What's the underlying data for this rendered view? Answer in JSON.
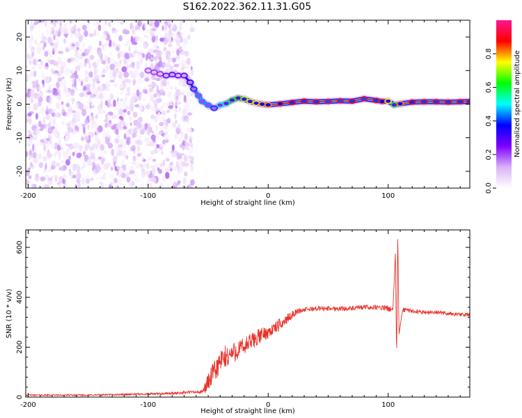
{
  "figure_title": "S162.2022.362.11.31.G05",
  "chart_data": [
    {
      "type": "heatmap",
      "title": "",
      "xlabel": "Height of straight line (km)",
      "ylabel": "Frequency (Hz)",
      "xlim": [
        -202,
        168
      ],
      "ylim": [
        -25,
        25
      ],
      "xticks": [
        -200,
        -100,
        0,
        100
      ],
      "yticks": [
        -20,
        -10,
        0,
        10,
        20
      ],
      "grid": false,
      "colorbar": {
        "label": "Normalized spectral amplitude",
        "range": [
          0,
          1
        ],
        "ticks": [
          0.0,
          0.2,
          0.4,
          0.6,
          0.8
        ],
        "colors": [
          "#ffffff",
          "#d8b2f6",
          "#7f00ff",
          "#0000ff",
          "#00ffff",
          "#00ff00",
          "#ffff00",
          "#ff0000",
          "#ff1493"
        ]
      },
      "noise_region": {
        "x_from": -202,
        "x_to": -63,
        "freq_from": -25,
        "freq_to": 25,
        "amplitude_range": [
          0.02,
          0.18
        ]
      },
      "frequency_trace": {
        "x": [
          -100,
          -95,
          -90,
          -85,
          -80,
          -75,
          -70,
          -65,
          -62,
          -58,
          -55,
          -50,
          -45,
          -40,
          -35,
          -30,
          -25,
          -20,
          -15,
          -10,
          -5,
          0,
          10,
          20,
          30,
          40,
          50,
          60,
          70,
          80,
          90,
          95,
          100,
          105,
          110,
          120,
          130,
          140,
          150,
          160,
          168
        ],
        "freq": [
          10,
          9.5,
          9,
          8.5,
          8.8,
          8.5,
          8.5,
          6.5,
          4.5,
          2.5,
          0.8,
          -0.3,
          -1.2,
          -0.3,
          0.2,
          1.2,
          1.8,
          1.5,
          0.8,
          0.3,
          0,
          -0.2,
          0.1,
          0.5,
          0.9,
          0.7,
          0.8,
          1.0,
          0.9,
          1.6,
          1.1,
          0.8,
          0.9,
          -0.2,
          0.1,
          0.6,
          0.7,
          0.7,
          0.6,
          0.7,
          0.8
        ],
        "amplitude": [
          0.2,
          0.22,
          0.22,
          0.28,
          0.3,
          0.28,
          0.3,
          0.35,
          0.4,
          0.45,
          0.45,
          0.45,
          0.4,
          0.5,
          0.55,
          0.6,
          0.65,
          0.7,
          0.72,
          0.75,
          0.78,
          0.8,
          0.85,
          0.88,
          0.9,
          0.9,
          0.92,
          0.92,
          0.9,
          0.92,
          0.9,
          0.85,
          0.75,
          0.6,
          0.8,
          0.88,
          0.9,
          0.9,
          0.9,
          0.9,
          0.9
        ]
      }
    },
    {
      "type": "line",
      "title": "",
      "xlabel": "Height of straight line (km)",
      "ylabel": "SNR (10 * v/v)",
      "xlim": [
        -202,
        168
      ],
      "ylim": [
        0,
        670
      ],
      "xticks": [
        -200,
        -100,
        0,
        100
      ],
      "yticks": [
        0,
        200,
        400,
        600
      ],
      "grid": false,
      "series": [
        {
          "color": "#e8322b",
          "x": [
            -202,
            -150,
            -100,
            -80,
            -65,
            -55,
            -50,
            -45,
            -40,
            -35,
            -30,
            -25,
            -20,
            -15,
            -10,
            -5,
            0,
            5,
            10,
            15,
            20,
            25,
            30,
            40,
            50,
            60,
            70,
            80,
            90,
            100,
            104,
            106,
            107,
            108,
            109,
            112,
            120,
            130,
            140,
            150,
            160,
            168
          ],
          "values": [
            8,
            8,
            12,
            15,
            20,
            20,
            60,
            100,
            140,
            160,
            175,
            190,
            200,
            220,
            235,
            250,
            260,
            275,
            290,
            310,
            330,
            345,
            350,
            355,
            355,
            355,
            355,
            360,
            360,
            355,
            350,
            580,
            150,
            660,
            250,
            350,
            345,
            340,
            340,
            335,
            330,
            330
          ],
          "noise_amplitude": [
            3,
            3,
            4,
            5,
            6,
            8,
            40,
            45,
            50,
            50,
            45,
            40,
            40,
            35,
            35,
            30,
            25,
            25,
            25,
            20,
            15,
            12,
            10,
            10,
            10,
            10,
            10,
            10,
            10,
            12,
            15,
            0,
            0,
            0,
            0,
            10,
            8,
            8,
            8,
            8,
            8,
            8
          ]
        }
      ]
    }
  ]
}
